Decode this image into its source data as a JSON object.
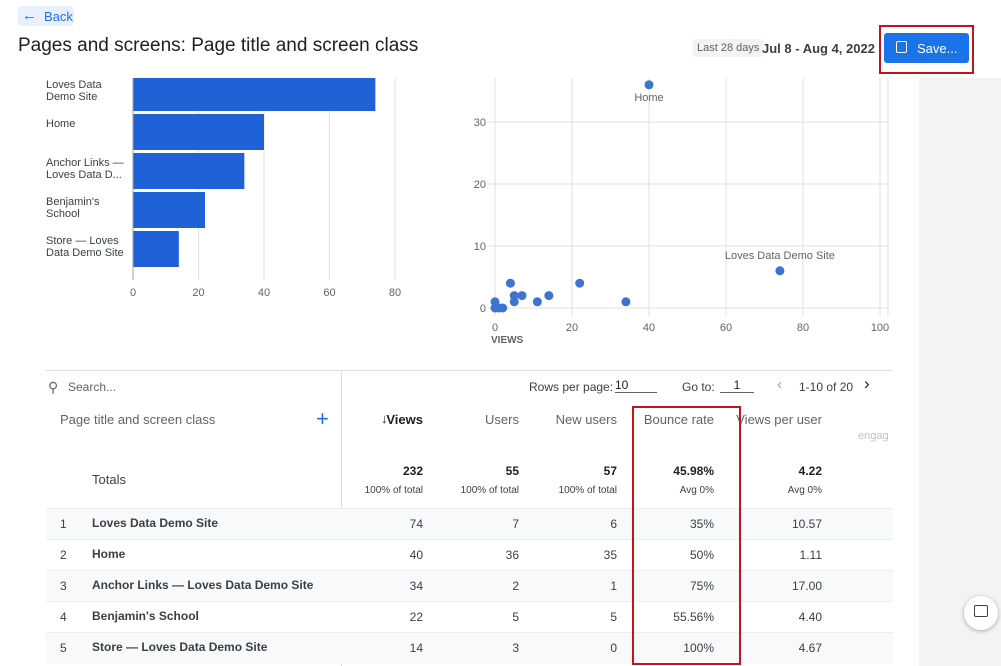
{
  "header": {
    "back": "Back",
    "title": "Pages and screens: Page title and screen class",
    "date_label": "Last 28 days",
    "date_range": "Jul 8 - Aug 4, 2022",
    "save": "Save..."
  },
  "chart_data": [
    {
      "type": "bar",
      "orientation": "horizontal",
      "categories": [
        "Loves Data Demo Site",
        "Home",
        "Anchor Links — Loves Data D...",
        "Benjamin's School",
        "Store — Loves Data Demo Site"
      ],
      "values": [
        74,
        40,
        34,
        22,
        14
      ],
      "color": "#1f62d8",
      "xlim": [
        0,
        80
      ],
      "xticks": [
        0,
        20,
        40,
        60,
        80
      ],
      "grid": true
    },
    {
      "type": "scatter",
      "x_label": "VIEWS",
      "x": [
        40,
        74,
        34,
        22,
        14,
        11,
        7,
        5,
        5,
        4,
        0,
        0,
        1,
        2
      ],
      "y": [
        36,
        6,
        1,
        4,
        2,
        1,
        2,
        2,
        1,
        4,
        1,
        0,
        0,
        0
      ],
      "color": "#3f73d1",
      "xlim": [
        0,
        100
      ],
      "xticks": [
        0,
        20,
        40,
        60,
        80,
        {
          "value": 100,
          "label": "100"
        }
      ],
      "ylim": [
        0,
        37
      ],
      "yticks": [
        0,
        10,
        20,
        30
      ],
      "grid": true,
      "annotations": [
        {
          "text": "Home",
          "x": 40,
          "y": 36
        },
        {
          "text": "Loves Data Demo Site",
          "x": 74,
          "y": 6
        }
      ]
    }
  ],
  "table": {
    "search_placeholder": "Search...",
    "rows_per_page_label": "Rows per page:",
    "rows_per_page": "10",
    "goto_label": "Go to:",
    "goto": "1",
    "range": "1-10 of 20",
    "columns": [
      "Page title and screen class",
      "Views",
      "Users",
      "New users",
      "Bounce rate",
      "Views per user",
      "engag"
    ],
    "totals": {
      "label": "Totals",
      "values": [
        "232",
        "55",
        "57",
        "45.98%",
        "4.22"
      ],
      "notes": [
        "100% of total",
        "100% of total",
        "100% of total",
        "Avg 0%",
        "Avg 0%"
      ]
    },
    "rows": [
      [
        "1",
        "Loves Data Demo Site",
        "74",
        "7",
        "6",
        "35%",
        "10.57"
      ],
      [
        "2",
        "Home",
        "40",
        "36",
        "35",
        "50%",
        "1.11"
      ],
      [
        "3",
        "Anchor Links — Loves Data Demo Site",
        "34",
        "2",
        "1",
        "75%",
        "17.00"
      ],
      [
        "4",
        "Benjamin's School",
        "22",
        "5",
        "5",
        "55.56%",
        "4.40"
      ],
      [
        "5",
        "Store — Loves Data Demo Site",
        "14",
        "3",
        "0",
        "100%",
        "4.67"
      ]
    ]
  }
}
